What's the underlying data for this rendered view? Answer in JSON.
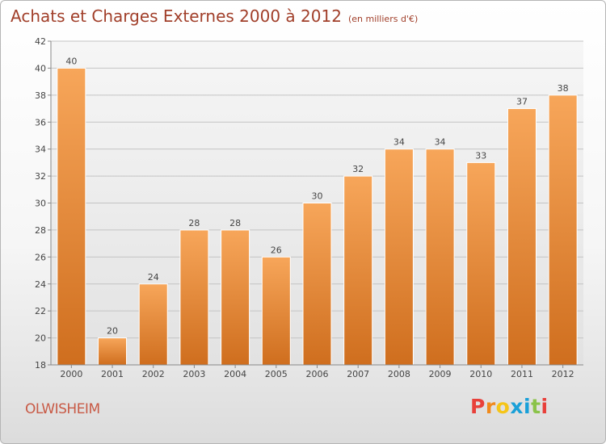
{
  "header": {
    "title": "Achats et Charges Externes 2000 à 2012",
    "subtitle": "(en milliers d'€)"
  },
  "footer": {
    "location": "OLWISHEIM",
    "logo_text": "Proxiti",
    "logo_colors": [
      "#e8403a",
      "#f08a1c",
      "#f5c518",
      "#1aa0d8",
      "#1aa0d8",
      "#8bc34a",
      "#e8403a"
    ]
  },
  "chart_data": {
    "type": "bar",
    "categories": [
      "2000",
      "2001",
      "2002",
      "2003",
      "2004",
      "2005",
      "2006",
      "2007",
      "2008",
      "2009",
      "2010",
      "2011",
      "2012"
    ],
    "values": [
      40,
      20,
      24,
      28,
      28,
      26,
      30,
      32,
      34,
      34,
      33,
      37,
      38
    ],
    "title": "Achats et Charges Externes 2000 à 2012",
    "xlabel": "",
    "ylabel": "",
    "ylim": [
      18,
      42
    ],
    "yticks": [
      18,
      20,
      22,
      24,
      26,
      28,
      30,
      32,
      34,
      36,
      38,
      40,
      42
    ],
    "grid": true,
    "bar_color_top": "#f7a65a",
    "bar_color_bottom": "#cf6e1e"
  }
}
